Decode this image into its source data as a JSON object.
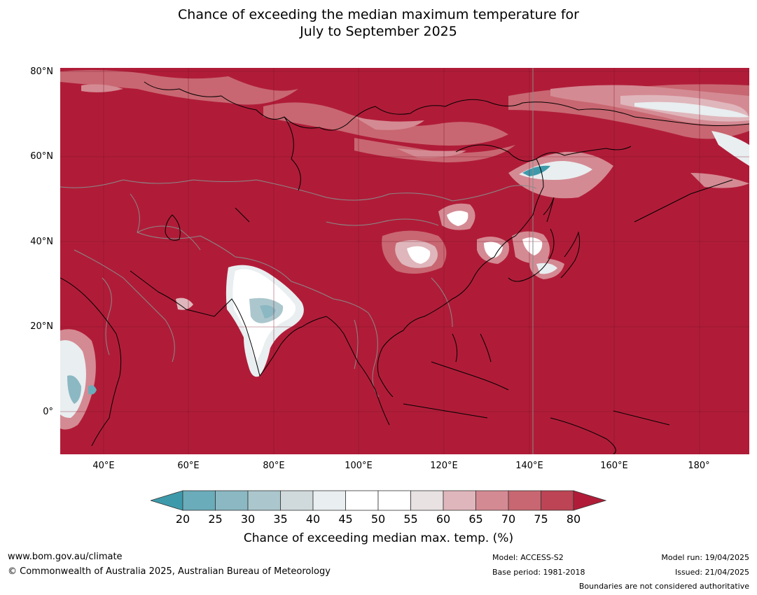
{
  "title": {
    "line1": "Chance of exceeding the median maximum temperature for",
    "line2": "July to September 2025"
  },
  "map": {
    "base_color": "#b01c38",
    "lat_labels": [
      "80°N",
      "60°N",
      "40°N",
      "20°N",
      "0°"
    ],
    "lon_labels": [
      "40°E",
      "60°E",
      "80°E",
      "100°E",
      "120°E",
      "140°E",
      "160°E",
      "180°"
    ]
  },
  "colorbar": {
    "ticks": [
      "20",
      "25",
      "30",
      "35",
      "40",
      "45",
      "50",
      "55",
      "60",
      "65",
      "70",
      "75",
      "80"
    ],
    "colors": [
      "#3e9aaa",
      "#6aacb9",
      "#8bb8c2",
      "#abc7cd",
      "#d0d9dc",
      "#e9eef0",
      "#ffffff",
      "#ffffff",
      "#e8e2e3",
      "#dfb6bb",
      "#d48a93",
      "#c86771",
      "#bc4454",
      "#b01c38"
    ],
    "label": "Chance of exceeding median max. temp. (%)"
  },
  "footer": {
    "website": "www.bom.gov.au/climate",
    "copyright": "© Commonwealth of Australia 2025, Australian Bureau of Meteorology",
    "model": "Model: ACCESS-S2",
    "base_period": "Base period: 1981-2018",
    "model_run": "Model run: 19/04/2025",
    "issued": "Issued: 21/04/2025",
    "disclaimer": "Boundaries are not considered authoritative"
  }
}
